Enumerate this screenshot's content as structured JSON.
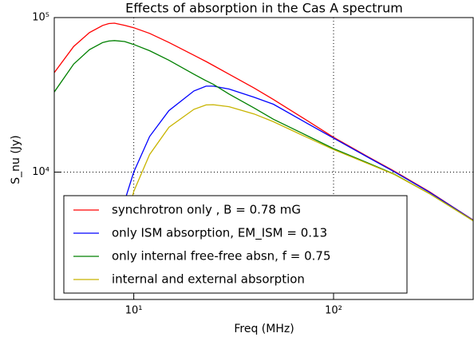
{
  "chart_data": {
    "type": "line",
    "title": "Effects of absorption in the Cas A spectrum",
    "x_label": "Freq (MHz)",
    "y_label": "S_nu (Jy)",
    "log_x": true,
    "log_y": true,
    "grid": true,
    "legend": "lower left",
    "xlim": [
      4,
      500
    ],
    "ylim": [
      1500,
      100000
    ],
    "xticks": [
      {
        "value": 10,
        "label": "10¹"
      },
      {
        "value": 100,
        "label": "10²"
      }
    ],
    "yticks": [
      {
        "value": 10000,
        "label": "10⁴"
      },
      {
        "value": 100000,
        "label": "10⁵"
      }
    ],
    "x": [
      4,
      5,
      6,
      7,
      7.5,
      8,
      9,
      10,
      12,
      15,
      20,
      23,
      25,
      30,
      40,
      50,
      70,
      100,
      150,
      200,
      300,
      400,
      500
    ],
    "series": [
      {
        "name": "synchrotron only , B = 0.78 mG",
        "color": "#ff0000",
        "values": [
          44000,
          65000,
          80000,
          89000,
          91500,
          92000,
          89000,
          86000,
          79000,
          69000,
          57000,
          52000,
          49000,
          43000,
          35000,
          29500,
          22500,
          16800,
          12500,
          10200,
          7500,
          5900,
          4900
        ]
      },
      {
        "name": "only ISM absorption, EM_ISM = 0.13",
        "color": "#0000ff",
        "values": [
          null,
          null,
          null,
          null,
          2000,
          3500,
          6500,
          10000,
          17000,
          25000,
          33500,
          36000,
          36000,
          34500,
          30500,
          27500,
          21500,
          16600,
          12400,
          10100,
          7450,
          5880,
          4880
        ]
      },
      {
        "name": "only internal free-free absn,  f = 0.75",
        "color": "#008000",
        "values": [
          33000,
          50000,
          62000,
          69000,
          70500,
          71000,
          70000,
          67000,
          61000,
          53000,
          43000,
          39000,
          37000,
          32000,
          26000,
          22000,
          17800,
          14200,
          11400,
          9750,
          7300,
          5800,
          4850
        ]
      },
      {
        "name": "internal and external absorption",
        "color": "#c8b400",
        "values": [
          null,
          null,
          null,
          null,
          null,
          1700,
          4300,
          7500,
          13000,
          19500,
          25500,
          27200,
          27300,
          26500,
          23800,
          21200,
          17300,
          14000,
          11300,
          9700,
          7300,
          5800,
          4850
        ]
      }
    ]
  }
}
